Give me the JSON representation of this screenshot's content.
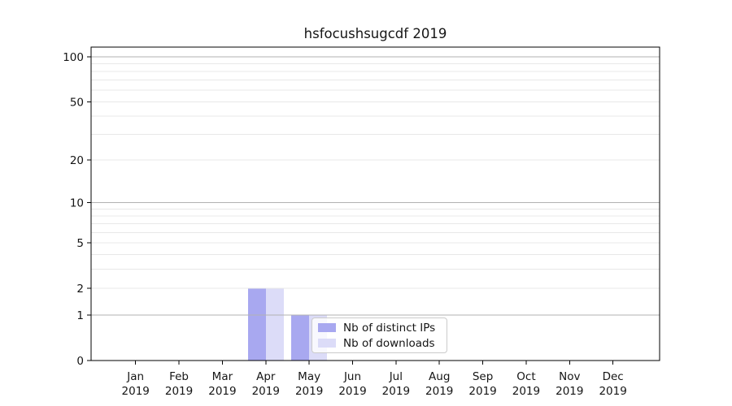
{
  "chart_data": {
    "type": "bar",
    "title": "hsfocushsugcdf 2019",
    "xlabel": "",
    "ylabel": "",
    "categories": [
      "Jan",
      "Feb",
      "Mar",
      "Apr",
      "May",
      "Jun",
      "Jul",
      "Aug",
      "Sep",
      "Oct",
      "Nov",
      "Dec"
    ],
    "year_label": "2019",
    "series": [
      {
        "name": "Nb of distinct IPs",
        "color": "#a8a8f0",
        "values": [
          0,
          0,
          0,
          2,
          1,
          0,
          0,
          0,
          0,
          0,
          0,
          0
        ]
      },
      {
        "name": "Nb of downloads",
        "color": "#dcdcf8",
        "values": [
          0,
          0,
          0,
          2,
          1,
          0,
          0,
          0,
          0,
          0,
          0,
          0
        ]
      }
    ],
    "yscale": "log1p",
    "ylim": [
      0,
      116
    ],
    "yticks": [
      0,
      1,
      2,
      5,
      10,
      20,
      50,
      100
    ],
    "grid": {
      "on": true,
      "major": [
        1,
        10,
        100
      ],
      "minor": [
        2,
        3,
        4,
        5,
        6,
        7,
        8,
        9,
        20,
        30,
        40,
        50,
        60,
        70,
        80,
        90
      ]
    },
    "legend": {
      "position": "lower center-right",
      "entries": [
        "Nb of distinct IPs",
        "Nb of downloads"
      ]
    }
  }
}
